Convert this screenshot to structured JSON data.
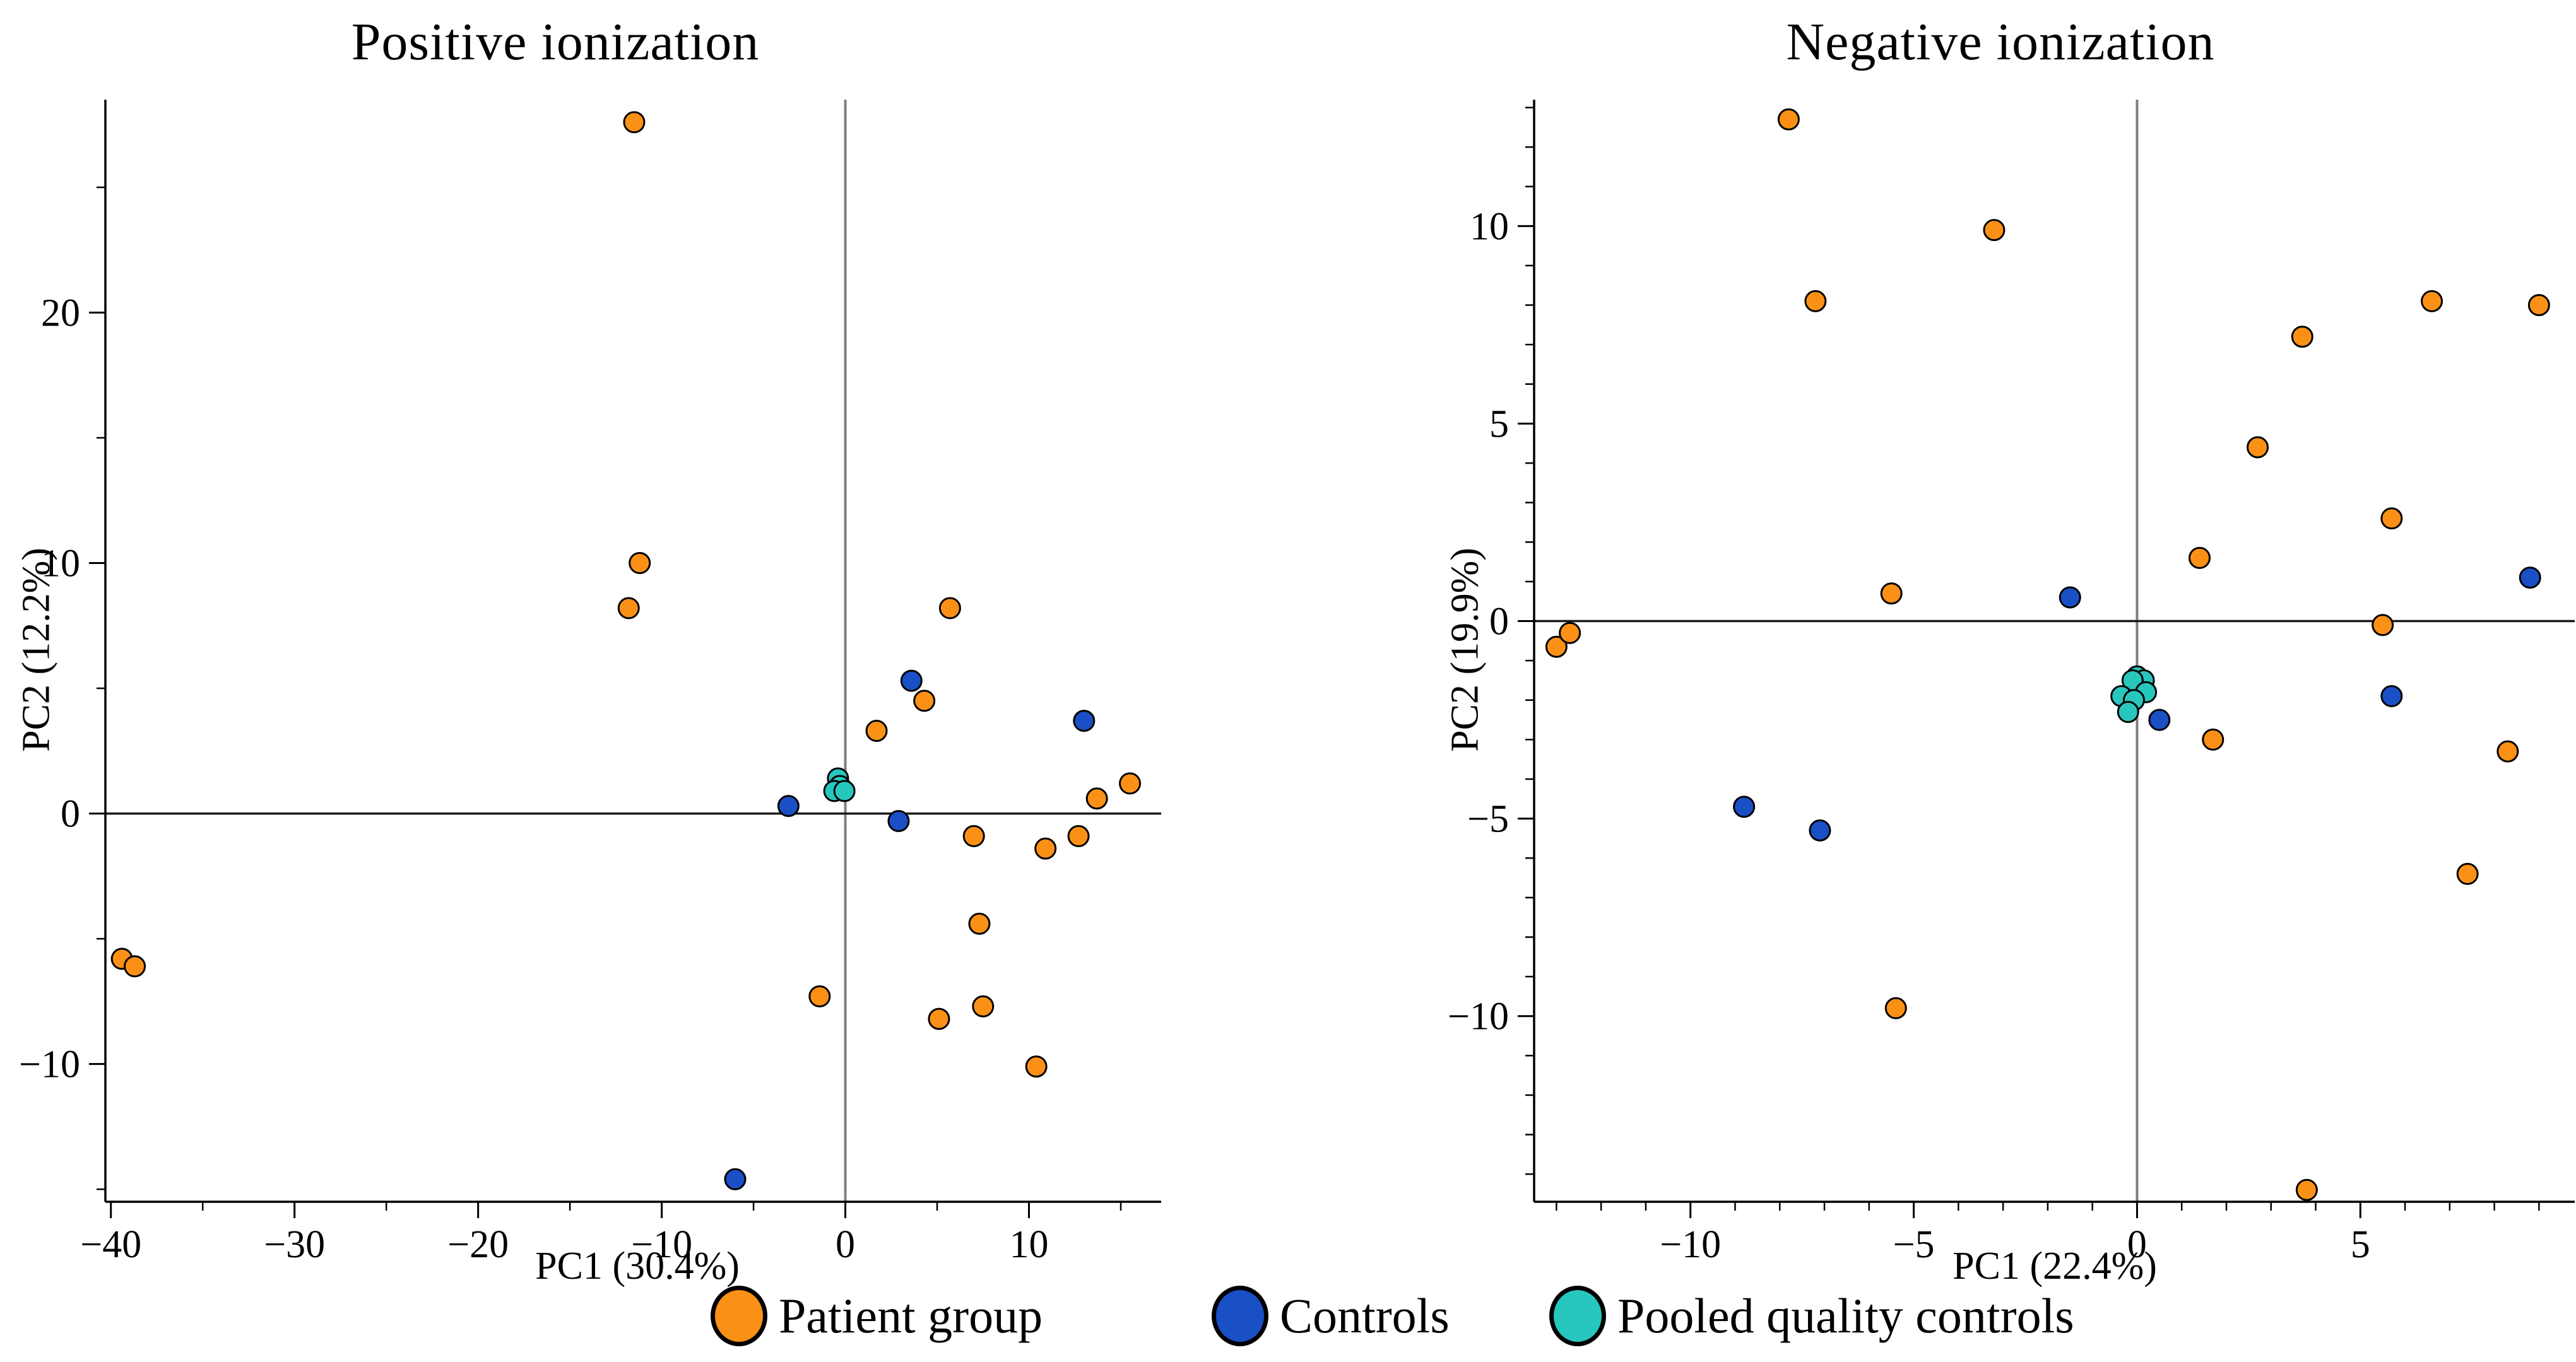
{
  "figure": {
    "background": "#ffffff",
    "marker_outline": "#000000",
    "zero_line_vertical_color": "#7f7f7f",
    "zero_line_horizontal_color": "#1a1a1a"
  },
  "legend": {
    "position": "bottom",
    "items": [
      {
        "label": "Patient group",
        "color": "#FA9116"
      },
      {
        "label": "Controls",
        "color": "#1A4FC5"
      },
      {
        "label": "Pooled quality controls",
        "color": "#27C7BE"
      }
    ]
  },
  "chart_data": [
    {
      "type": "scatter",
      "title": "Positive ionization",
      "xlabel": "PC1 (30.4%)",
      "ylabel": "PC2 (12.2%)",
      "xlim": [
        -40.3,
        17.2
      ],
      "ylim": [
        -15.5,
        28.5
      ],
      "xticks": [
        -40,
        -30,
        -20,
        -10,
        0,
        10
      ],
      "yticks": [
        -10,
        0,
        10,
        20
      ],
      "minor_x_step": 5,
      "minor_y_step": 5,
      "grid": false,
      "zero_lines": true,
      "series": [
        {
          "name": "Patient group",
          "color": "#FA9116",
          "points": [
            [
              -11.5,
              27.6
            ],
            [
              -11.2,
              10.0
            ],
            [
              -11.8,
              8.2
            ],
            [
              5.7,
              8.2
            ],
            [
              4.3,
              4.5
            ],
            [
              1.7,
              3.3
            ],
            [
              15.5,
              1.2
            ],
            [
              13.7,
              0.6
            ],
            [
              12.7,
              -0.9
            ],
            [
              7.0,
              -0.9
            ],
            [
              10.9,
              -1.4
            ],
            [
              7.3,
              -4.4
            ],
            [
              -1.4,
              -7.3
            ],
            [
              7.5,
              -7.7
            ],
            [
              5.1,
              -8.2
            ],
            [
              10.4,
              -10.1
            ],
            [
              -39.4,
              -5.8
            ],
            [
              -38.7,
              -6.1
            ]
          ]
        },
        {
          "name": "Controls",
          "color": "#1A4FC5",
          "points": [
            [
              3.6,
              5.3
            ],
            [
              13.0,
              3.7
            ],
            [
              -3.1,
              0.3
            ],
            [
              2.9,
              -0.3
            ],
            [
              -6.0,
              -14.6
            ]
          ]
        },
        {
          "name": "Pooled quality controls",
          "color": "#27C7BE",
          "points": [
            [
              -0.4,
              1.4
            ],
            [
              -0.3,
              1.1
            ],
            [
              -0.6,
              0.9
            ],
            [
              -0.05,
              0.9
            ]
          ]
        }
      ]
    },
    {
      "type": "scatter",
      "title": "Negative ionization",
      "xlabel": "PC1 (22.4%)",
      "ylabel": "PC2 (19.9%)",
      "xlim": [
        -13.5,
        9.8
      ],
      "ylim": [
        -14.7,
        13.2
      ],
      "xticks": [
        -10,
        -5,
        0,
        5
      ],
      "yticks": [
        -10,
        -5,
        0,
        5,
        10
      ],
      "minor_x_step": 1,
      "minor_y_step": 1,
      "grid": false,
      "zero_lines": true,
      "series": [
        {
          "name": "Patient group",
          "color": "#FA9116",
          "points": [
            [
              -7.8,
              12.7
            ],
            [
              -3.2,
              9.9
            ],
            [
              -7.2,
              8.1
            ],
            [
              6.6,
              8.1
            ],
            [
              9.0,
              8.0
            ],
            [
              3.7,
              7.2
            ],
            [
              2.7,
              4.4
            ],
            [
              5.7,
              2.6
            ],
            [
              1.4,
              1.6
            ],
            [
              -5.5,
              0.7
            ],
            [
              -13.0,
              -0.65
            ],
            [
              -12.7,
              -0.3
            ],
            [
              5.5,
              -0.1
            ],
            [
              1.7,
              -3.0
            ],
            [
              8.3,
              -3.3
            ],
            [
              7.4,
              -6.4
            ],
            [
              -5.4,
              -9.8
            ],
            [
              3.8,
              -14.4
            ]
          ]
        },
        {
          "name": "Controls",
          "color": "#1A4FC5",
          "points": [
            [
              -1.5,
              0.6
            ],
            [
              8.8,
              1.1
            ],
            [
              5.7,
              -1.9
            ],
            [
              0.5,
              -2.5
            ],
            [
              -8.8,
              -4.7
            ],
            [
              -7.1,
              -5.3
            ]
          ]
        },
        {
          "name": "Pooled quality controls",
          "color": "#27C7BE",
          "points": [
            [
              0.0,
              -1.4
            ],
            [
              0.15,
              -1.5
            ],
            [
              -0.1,
              -1.5
            ],
            [
              0.2,
              -1.8
            ],
            [
              -0.35,
              -1.9
            ],
            [
              -0.07,
              -2.0
            ],
            [
              -0.2,
              -2.3
            ]
          ]
        }
      ]
    }
  ]
}
